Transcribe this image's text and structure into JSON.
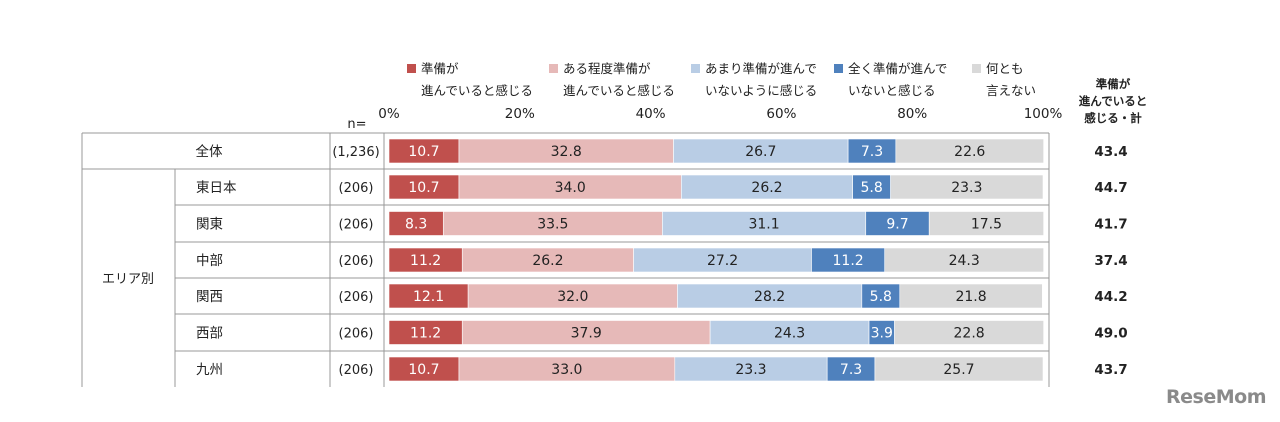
{
  "chart_data": {
    "type": "bar",
    "stacked": true,
    "orientation": "horizontal",
    "n_label": "n=",
    "x_ticks": [
      "0%",
      "20%",
      "40%",
      "60%",
      "80%",
      "100%"
    ],
    "xlim": [
      0,
      100
    ],
    "legend_placement": "top",
    "series": [
      {
        "label_lines": [
          "準備が",
          "進んでいると感じる"
        ],
        "color": "#c0504d"
      },
      {
        "label_lines": [
          "ある程度準備が",
          "進んでいると感じる"
        ],
        "color": "#e6b9b8"
      },
      {
        "label_lines": [
          "あまり準備が進んで",
          "いないように感じる"
        ],
        "color": "#b9cde5"
      },
      {
        "label_lines": [
          "全く準備が進んで",
          "いないと感じる"
        ],
        "color": "#4f81bd"
      },
      {
        "label_lines": [
          "何とも",
          "言えない"
        ],
        "color": "#d9d9d9"
      }
    ],
    "total_header_lines": [
      "準備が",
      "進んでいると",
      "感じる・計"
    ],
    "group_label": "エリア別",
    "rows": [
      {
        "label": "全体",
        "n": "(1,236)",
        "values": [
          "10.7",
          "32.8",
          "26.7",
          "7.3",
          "22.6"
        ],
        "total": "43.4"
      },
      {
        "label": "東日本",
        "n": "(206)",
        "values": [
          "10.7",
          "34.0",
          "26.2",
          "5.8",
          "23.3"
        ],
        "total": "44.7"
      },
      {
        "label": "関東",
        "n": "(206)",
        "values": [
          "8.3",
          "33.5",
          "31.1",
          "9.7",
          "17.5"
        ],
        "total": "41.7"
      },
      {
        "label": "中部",
        "n": "(206)",
        "values": [
          "11.2",
          "26.2",
          "27.2",
          "11.2",
          "24.3"
        ],
        "total": "37.4"
      },
      {
        "label": "関西",
        "n": "(206)",
        "values": [
          "12.1",
          "32.0",
          "28.2",
          "5.8",
          "21.8"
        ],
        "total": "44.2"
      },
      {
        "label": "西部",
        "n": "(206)",
        "values": [
          "11.2",
          "37.9",
          "24.3",
          "3.9",
          "22.8"
        ],
        "total": "49.0"
      },
      {
        "label": "九州",
        "n": "(206)",
        "values": [
          "10.7",
          "33.0",
          "23.3",
          "7.3",
          "25.7"
        ],
        "total": "43.7"
      }
    ]
  },
  "watermark": "ReseMom"
}
